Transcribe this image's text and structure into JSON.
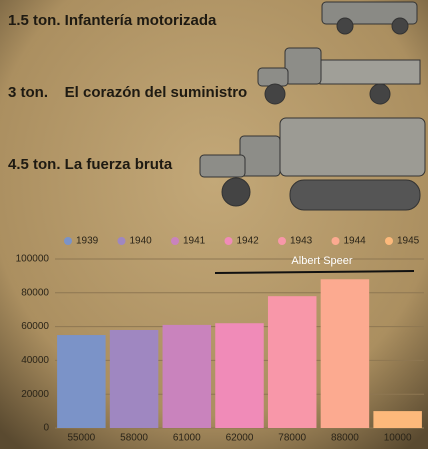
{
  "headings": [
    "1.5 ton. Infantería motorizada",
    "3 ton.    El corazón del suministro",
    "4.5 ton. La fuerza bruta"
  ],
  "chart_data": {
    "type": "bar",
    "series_names": [
      "1939",
      "1940",
      "1941",
      "1942",
      "1943",
      "1944",
      "1945"
    ],
    "colors": [
      "#7b93c8",
      "#9f87c1",
      "#c983bd",
      "#f08bb8",
      "#f897a9",
      "#fcaa90",
      "#fdb97b"
    ],
    "values": [
      55000,
      58000,
      61000,
      62000,
      78000,
      88000,
      10000
    ],
    "value_labels": [
      "55000",
      "58000",
      "61000",
      "62000",
      "78000",
      "88000",
      "10000"
    ],
    "annotation": "Albert Speer",
    "ylim": [
      0,
      100000
    ],
    "yticks": [
      0,
      20000,
      40000,
      60000,
      80000,
      100000
    ],
    "grid": true
  }
}
